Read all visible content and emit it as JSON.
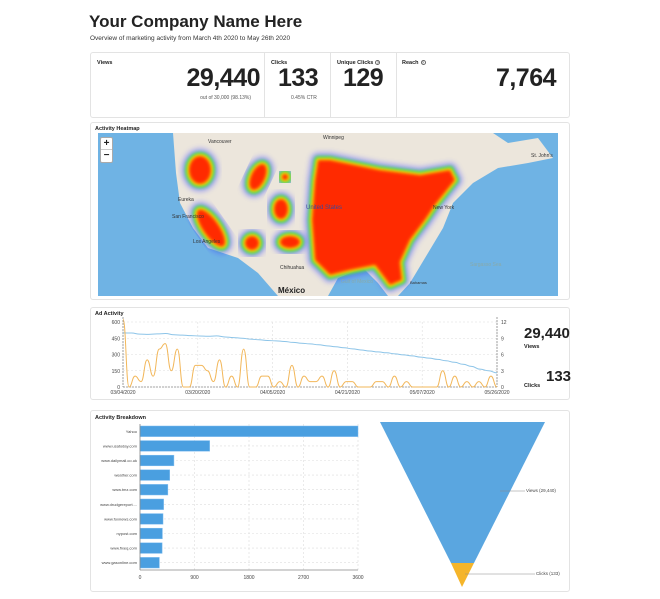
{
  "header": {
    "title": "Your Company Name Here",
    "subtitle": "Overview of marketing activity from March 4th 2020 to May 26th 2020"
  },
  "stats": {
    "views": {
      "label": "Views",
      "value": "29,440",
      "note": "out of 30,000 (98.13%)"
    },
    "clicks": {
      "label": "Clicks",
      "value": "133",
      "note": "0.45% CTR"
    },
    "unique_clicks": {
      "label": "Unique Clicks",
      "value": "129",
      "help": "?"
    },
    "reach": {
      "label": "Reach",
      "value": "7,764",
      "help": "?"
    }
  },
  "heatmap": {
    "title": "Activity Heatmap",
    "zoom_in": "+",
    "zoom_out": "−",
    "places": [
      "Vancouver",
      "Winnipeg",
      "St. John's",
      "Eureka",
      "San Francisco",
      "Los Angeles",
      "United States",
      "New York",
      "Chihuahua",
      "México",
      "Gulf of Mexico",
      "Sargasso Sea",
      "Bahamas"
    ],
    "colors": {
      "water": "#6fb3e4",
      "land": "#ece6dc",
      "hot": "#ff2a00",
      "warm": "#ffe800",
      "mid": "#29e84a",
      "cool": "#4a55ff"
    }
  },
  "chart_data": [
    {
      "type": "line",
      "title": "Ad Activity",
      "x_ticks": [
        "03/04/2020",
        "03/20/2020",
        "04/05/2020",
        "04/21/2020",
        "05/07/2020",
        "05/26/2020"
      ],
      "y_left": {
        "ticks": [
          "0",
          "150",
          "300",
          "450",
          "600"
        ],
        "lim": [
          0,
          600
        ]
      },
      "y_right": {
        "ticks": [
          "0",
          "3",
          "6",
          "9",
          "12"
        ],
        "lim": [
          0,
          12
        ]
      },
      "series": [
        {
          "name": "Views",
          "color": "#8cc4e8",
          "axis": "left",
          "values": [
            500,
            498,
            488,
            486,
            490,
            494,
            482,
            479,
            474,
            471,
            468,
            472,
            462,
            456,
            450,
            442,
            436,
            429,
            426,
            420,
            412,
            404,
            398,
            390,
            380,
            372,
            362,
            352,
            342,
            332,
            324,
            316,
            306,
            296,
            287,
            276,
            266,
            255,
            242,
            228,
            210,
            190,
            165,
            150,
            130
          ]
        },
        {
          "name": "Clicks",
          "color": "#f2b75a",
          "axis": "right",
          "values": [
            12.5,
            0,
            2,
            1,
            5,
            2,
            7,
            8,
            3,
            7,
            0,
            0,
            4,
            4,
            3,
            1,
            5,
            0,
            2,
            0,
            7,
            0,
            0,
            2,
            2,
            0,
            1,
            0,
            4,
            0,
            2,
            1,
            1,
            2,
            0,
            3,
            0,
            1,
            1,
            0,
            0,
            0,
            1,
            1,
            0,
            2,
            0,
            1,
            0,
            0,
            0,
            0,
            0,
            3,
            0,
            2,
            0,
            1,
            0,
            1,
            0,
            2,
            0
          ]
        }
      ],
      "summary": [
        {
          "value": "29,440",
          "label": "Views"
        },
        {
          "value": "133",
          "label": "Clicks"
        }
      ]
    },
    {
      "type": "bar",
      "orientation": "horizontal",
      "title": "Activity Breakdown",
      "categories": [
        "Yahoo",
        "www.usatoday.com",
        "www.dailymail.co.uk",
        "weather.com",
        "www.tmz.com",
        "www.drudgereport....",
        "www.foxnews.com",
        "nypost.com",
        "www.fixeq.com",
        "www.gasonline.com"
      ],
      "values": [
        3600,
        1150,
        560,
        490,
        460,
        390,
        380,
        370,
        365,
        320
      ],
      "x_ticks": [
        "0",
        "900",
        "1800",
        "2700",
        "3600"
      ],
      "xlim": [
        0,
        3600
      ],
      "color": "#4a9fe0"
    },
    {
      "type": "funnel",
      "stages": [
        {
          "label": "Views (29,440)",
          "value": 29440,
          "color": "#5aa6e0"
        },
        {
          "label": "Clicks (133)",
          "value": 133,
          "color": "#f5b52a"
        }
      ]
    }
  ]
}
